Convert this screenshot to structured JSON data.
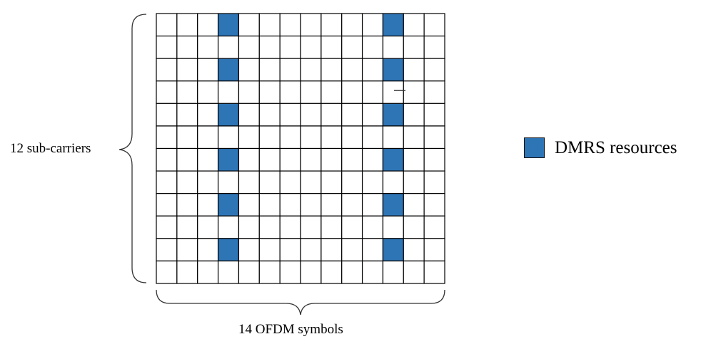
{
  "grid": {
    "rows": 12,
    "cols": 14,
    "dmrs_columns": [
      3,
      11
    ],
    "dmrs_rows": [
      0,
      2,
      4,
      6,
      8,
      10
    ]
  },
  "labels": {
    "subcarriers": "12 sub-carriers",
    "symbols": "14 OFDM symbols"
  },
  "legend": {
    "text": "DMRS resources"
  },
  "colors": {
    "dmrs": "#2E75B6",
    "grid_line": "#000000"
  }
}
